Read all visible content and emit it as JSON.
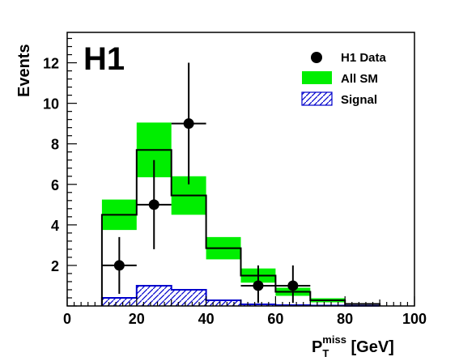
{
  "chart_data": {
    "type": "bar",
    "logo": "H1",
    "xlabel": {
      "main": "P",
      "sub": "T",
      "sup": "miss",
      "unit": " [GeV]"
    },
    "ylabel": "Events",
    "xlim": [
      0,
      100
    ],
    "ylim": [
      0,
      13.5
    ],
    "x_ticks": [
      0,
      20,
      40,
      60,
      80,
      100
    ],
    "y_ticks": [
      2,
      4,
      6,
      8,
      10,
      12
    ],
    "bin_edges": [
      10,
      20,
      30,
      40,
      50,
      60,
      70,
      80,
      90
    ],
    "series": [
      {
        "name": "All SM",
        "kind": "histogram-with-band",
        "values": [
          4.5,
          7.7,
          5.45,
          2.85,
          1.5,
          0.7,
          0.28,
          0.1
        ],
        "band_low": [
          3.75,
          6.35,
          4.5,
          2.3,
          1.15,
          0.5,
          0.18,
          0.06
        ],
        "band_high": [
          5.25,
          9.05,
          6.4,
          3.4,
          1.85,
          0.9,
          0.38,
          0.14
        ],
        "fill_color": "#00ee00",
        "line_color": "#000000"
      },
      {
        "name": "Signal",
        "kind": "hatched-histogram",
        "values": [
          0.4,
          1.0,
          0.8,
          0.28,
          0.08,
          0.04,
          0.02,
          0.01
        ],
        "color": "#0000cc"
      },
      {
        "name": "H1 Data",
        "kind": "points",
        "x": [
          15,
          25,
          35,
          55,
          65
        ],
        "y": [
          2,
          5,
          9,
          1,
          1
        ],
        "yerr_low": [
          1.4,
          2.2,
          3.0,
          0.85,
          0.85
        ],
        "yerr_high": [
          1.4,
          2.2,
          3.0,
          1.0,
          1.0
        ],
        "xerr": 5,
        "color": "#000000"
      }
    ],
    "legend": {
      "position": "top-right",
      "entries": [
        "H1 Data",
        "All SM",
        "Signal"
      ]
    }
  }
}
